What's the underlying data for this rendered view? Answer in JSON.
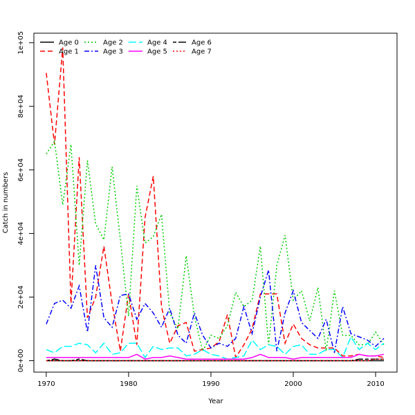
{
  "chart_data": {
    "type": "line",
    "title": "",
    "xlabel": "Year",
    "ylabel": "Catch in numbers",
    "xlim": [
      1968.5,
      2012.6
    ],
    "ylim": [
      -3600,
      103000
    ],
    "x_ticks": [
      1970,
      1980,
      1990,
      2000,
      2010
    ],
    "y_ticks": [
      0,
      20000,
      40000,
      60000,
      80000,
      100000
    ],
    "y_tick_labels": [
      "0e+00",
      "2e+04",
      "4e+04",
      "6e+04",
      "8e+04",
      "1e+05"
    ],
    "grid": false,
    "legend_position": "top-left",
    "x": [
      1970,
      1971,
      1972,
      1973,
      1974,
      1975,
      1976,
      1977,
      1978,
      1979,
      1980,
      1981,
      1982,
      1983,
      1984,
      1985,
      1986,
      1987,
      1988,
      1989,
      1990,
      1991,
      1992,
      1993,
      1994,
      1995,
      1996,
      1997,
      1998,
      1999,
      2000,
      2001,
      2002,
      2003,
      2004,
      2005,
      2006,
      2007,
      2008,
      2009,
      2010,
      2011
    ],
    "series": [
      {
        "name": "Age 0",
        "color": "#000000",
        "dash": "solid",
        "values": [
          0,
          0,
          0,
          0,
          0,
          0,
          0,
          0,
          0,
          0,
          0,
          0,
          0,
          0,
          0,
          0,
          0,
          0,
          0,
          0,
          0,
          0,
          0,
          0,
          0,
          0,
          0,
          0,
          0,
          0,
          0,
          0,
          0,
          0,
          0,
          0,
          0,
          0,
          0,
          0,
          0,
          0
        ]
      },
      {
        "name": "Age 1",
        "color": "#ff0000",
        "dash": "dashed",
        "values": [
          90500,
          68000,
          98500,
          18000,
          64000,
          13500,
          20000,
          36000,
          18000,
          3000,
          21000,
          5000,
          45000,
          58000,
          17000,
          5500,
          11000,
          12000,
          3000,
          3500,
          4000,
          6000,
          14500,
          1000,
          5000,
          10000,
          21000,
          21000,
          21000,
          5500,
          11500,
          7000,
          5000,
          4000,
          4000,
          4000,
          1500,
          1500,
          2000,
          1500,
          1500,
          1000
        ]
      },
      {
        "name": "Age 2",
        "color": "#00cd00",
        "dash": "dotted",
        "values": [
          65000,
          69000,
          49000,
          68000,
          30000,
          63000,
          43000,
          38000,
          61000,
          38000,
          14000,
          55000,
          37000,
          39000,
          46000,
          15000,
          10000,
          33000,
          14000,
          3000,
          8000,
          7000,
          11000,
          21500,
          17000,
          19000,
          36000,
          5000,
          30000,
          39500,
          19000,
          22000,
          12500,
          23000,
          3000,
          22000,
          8000,
          8000,
          5000,
          5000,
          9000,
          5000
        ]
      },
      {
        "name": "Age 3",
        "color": "#0000ff",
        "dash": "dashdot",
        "values": [
          11500,
          18000,
          19000,
          16500,
          23500,
          9000,
          30000,
          13500,
          10500,
          20500,
          21000,
          13000,
          18000,
          15000,
          10500,
          16500,
          8000,
          5500,
          15000,
          8000,
          4000,
          5500,
          4500,
          7000,
          17000,
          8500,
          20000,
          28500,
          3000,
          15000,
          22000,
          12000,
          9500,
          7000,
          13000,
          2500,
          17000,
          8500,
          7500,
          6500,
          4500,
          7000
        ]
      },
      {
        "name": "Age 4",
        "color": "#00ffff",
        "dash": "longdash",
        "values": [
          3500,
          2500,
          4500,
          4500,
          5500,
          5000,
          2500,
          5500,
          2000,
          2500,
          5500,
          5500,
          1000,
          4500,
          3500,
          4000,
          4000,
          1500,
          2000,
          3500,
          2000,
          1500,
          500,
          1000,
          1500,
          6500,
          3500,
          5000,
          4500,
          2000,
          4500,
          5000,
          2000,
          2000,
          3500,
          3500,
          1000,
          7500,
          3500,
          5500,
          3500,
          5500
        ]
      },
      {
        "name": "Age 5",
        "color": "#ff00ff",
        "dash": "solid",
        "values": [
          1000,
          1000,
          1000,
          1000,
          1000,
          1000,
          1000,
          1000,
          1000,
          1000,
          1000,
          2000,
          500,
          1000,
          1000,
          1500,
          1000,
          500,
          500,
          500,
          500,
          500,
          500,
          500,
          500,
          1000,
          2000,
          1000,
          1000,
          1000,
          500,
          1000,
          1000,
          1000,
          1000,
          1000,
          1000,
          1000,
          2000,
          1500,
          1500,
          2000
        ]
      },
      {
        "name": "Age 6",
        "color": "#000000",
        "dash": "twodash",
        "values": [
          0,
          500,
          0,
          0,
          500,
          0,
          0,
          0,
          0,
          0,
          0,
          0,
          0,
          0,
          0,
          0,
          0,
          0,
          0,
          0,
          0,
          0,
          0,
          0,
          0,
          0,
          0,
          0,
          0,
          0,
          0,
          0,
          0,
          0,
          0,
          0,
          0,
          0,
          500,
          500,
          500,
          500
        ]
      },
      {
        "name": "Age 7",
        "color": "#ff0000",
        "dash": "dotted",
        "values": [
          0,
          0,
          0,
          0,
          0,
          0,
          0,
          0,
          0,
          0,
          0,
          0,
          0,
          0,
          0,
          0,
          0,
          0,
          0,
          0,
          0,
          0,
          0,
          0,
          0,
          0,
          0,
          0,
          0,
          0,
          0,
          0,
          0,
          0,
          0,
          0,
          0,
          0,
          0,
          0,
          500,
          500
        ]
      }
    ]
  }
}
